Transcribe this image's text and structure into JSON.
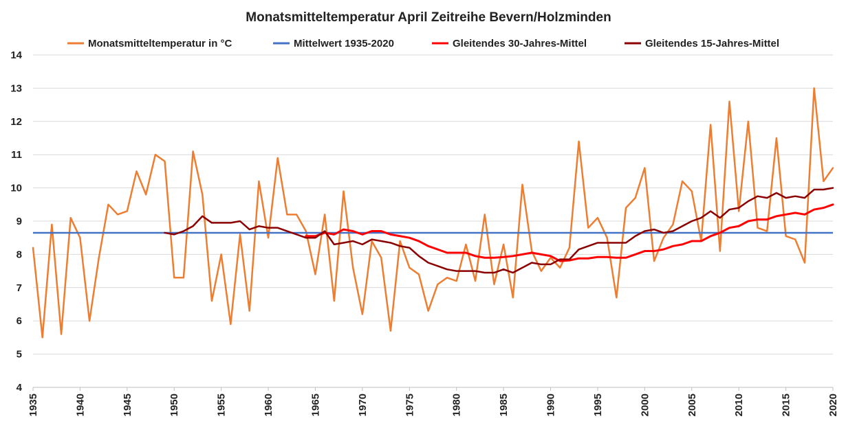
{
  "chart_data": {
    "type": "line",
    "title": "Monatsmitteltemperatur April Zeitreihe Bevern/Holzminden",
    "xlabel": "",
    "ylabel": "",
    "xlim": [
      1935,
      2020
    ],
    "ylim": [
      4,
      14
    ],
    "yticks": [
      4,
      5,
      6,
      7,
      8,
      9,
      10,
      11,
      12,
      13,
      14
    ],
    "xticks": [
      1935,
      1940,
      1945,
      1950,
      1955,
      1960,
      1965,
      1970,
      1975,
      1980,
      1985,
      1990,
      1995,
      2000,
      2005,
      2010,
      2015,
      2020
    ],
    "grid": "horizontal",
    "legend": "top",
    "colors": {
      "monthly": "#ED7D31",
      "mean": "#4472C4",
      "ma30": "#FF0000",
      "ma15": "#8B0000"
    },
    "legend_entries": [
      {
        "key": "monthly",
        "label": "Monatsmitteltemperatur in °C"
      },
      {
        "key": "mean",
        "label": "Mittelwert 1935-2020"
      },
      {
        "key": "ma30",
        "label": "Gleitendes 30-Jahres-Mittel"
      },
      {
        "key": "ma15",
        "label": "Gleitendes 15-Jahres-Mittel"
      }
    ],
    "series": [
      {
        "name": "Monatsmitteltemperatur in °C",
        "key": "monthly",
        "x_start": 1935,
        "values": [
          8.2,
          5.5,
          8.9,
          5.6,
          9.1,
          8.5,
          6.0,
          7.9,
          9.5,
          9.2,
          9.3,
          10.5,
          9.8,
          11.0,
          10.8,
          7.3,
          7.3,
          11.1,
          9.8,
          6.6,
          8.0,
          5.9,
          8.6,
          6.3,
          10.2,
          8.5,
          10.9,
          9.2,
          9.2,
          8.7,
          7.4,
          9.2,
          6.6,
          9.9,
          7.6,
          6.2,
          8.4,
          7.9,
          5.7,
          8.4,
          7.6,
          7.4,
          6.3,
          7.1,
          7.3,
          7.2,
          8.3,
          7.2,
          9.2,
          7.1,
          8.3,
          6.7,
          10.1,
          8.1,
          7.5,
          7.9,
          7.6,
          8.2,
          11.4,
          8.8,
          9.1,
          8.5,
          6.7,
          9.4,
          9.7,
          10.6,
          7.8,
          8.5,
          8.9,
          10.2,
          9.9,
          8.4,
          11.9,
          8.1,
          12.6,
          9.3,
          12.0,
          8.8,
          8.7,
          11.5,
          8.55,
          8.45,
          7.75,
          13.0,
          10.2,
          10.6
        ]
      },
      {
        "name": "Mittelwert 1935-2020",
        "key": "mean",
        "x_start": 1935,
        "constant": 8.65,
        "x_end": 2020
      },
      {
        "name": "Gleitendes 30-Jahres-Mittel",
        "key": "ma30",
        "x_start": 1964,
        "values": [
          8.55,
          8.55,
          8.65,
          8.6,
          8.75,
          8.7,
          8.6,
          8.7,
          8.7,
          8.6,
          8.55,
          8.5,
          8.4,
          8.25,
          8.15,
          8.05,
          8.05,
          8.05,
          7.95,
          7.9,
          7.9,
          7.92,
          7.95,
          8.0,
          8.05,
          8.0,
          7.95,
          7.8,
          7.82,
          7.88,
          7.88,
          7.92,
          7.92,
          7.9,
          7.9,
          8.0,
          8.1,
          8.1,
          8.15,
          8.25,
          8.3,
          8.4,
          8.4,
          8.55,
          8.65,
          8.8,
          8.85,
          9.0,
          9.05,
          9.05,
          9.15,
          9.2,
          9.25,
          9.2,
          9.35,
          9.4,
          9.5
        ]
      },
      {
        "name": "Gleitendes 15-Jahres-Mittel",
        "key": "ma15",
        "x_start": 1949,
        "values": [
          8.65,
          8.6,
          8.7,
          8.85,
          9.15,
          8.95,
          8.95,
          8.95,
          9.0,
          8.75,
          8.85,
          8.8,
          8.8,
          8.7,
          8.6,
          8.5,
          8.5,
          8.7,
          8.3,
          8.35,
          8.4,
          8.3,
          8.45,
          8.4,
          8.35,
          8.25,
          8.2,
          7.95,
          7.75,
          7.65,
          7.55,
          7.5,
          7.5,
          7.5,
          7.45,
          7.45,
          7.55,
          7.45,
          7.6,
          7.75,
          7.7,
          7.7,
          7.85,
          7.85,
          8.15,
          8.25,
          8.35,
          8.35,
          8.35,
          8.35,
          8.55,
          8.7,
          8.75,
          8.65,
          8.7,
          8.85,
          9.0,
          9.1,
          9.3,
          9.1,
          9.35,
          9.4,
          9.6,
          9.75,
          9.7,
          9.85,
          9.7,
          9.75,
          9.7,
          9.95,
          9.95,
          10.0
        ]
      }
    ]
  }
}
